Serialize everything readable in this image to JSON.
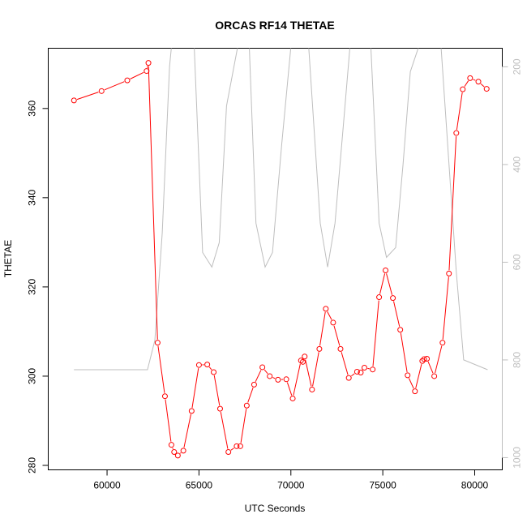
{
  "chart_data": {
    "type": "line",
    "title": "ORCAS RF14 THETAE",
    "xlabel": "UTC Seconds",
    "ylabel": "THETAE",
    "xlim": [
      56800,
      81500
    ],
    "ylim": [
      279,
      373.5
    ],
    "x_ticks": [
      60000,
      65000,
      70000,
      75000,
      80000
    ],
    "x_tick_labels": [
      "60000",
      "65000",
      "70000",
      "75000",
      "80000"
    ],
    "y_ticks": [
      280,
      300,
      320,
      340,
      360
    ],
    "y_tick_labels": [
      "280",
      "300",
      "320",
      "340",
      "360"
    ],
    "y2_axis": {
      "reversed": true,
      "lim": [
        162,
        1025
      ],
      "ticks": [
        200,
        400,
        600,
        800,
        1000
      ],
      "tick_labels": [
        "200",
        "400",
        "600",
        "800",
        "1000"
      ],
      "color": "#bebebe"
    },
    "series": [
      {
        "axis": "left",
        "color": "#ff0000",
        "marker": "open-circle",
        "x": [
          58200,
          59700,
          61100,
          62150,
          62250,
          62750,
          63150,
          63500,
          63650,
          63850,
          64150,
          64600,
          65000,
          65450,
          65800,
          66150,
          66600,
          67050,
          67250,
          67600,
          68000,
          68450,
          68850,
          69300,
          69750,
          70100,
          70550,
          70650,
          70750,
          71150,
          71550,
          71900,
          72300,
          72700,
          73150,
          73600,
          73800,
          74000,
          74450,
          74800,
          75150,
          75550,
          75950,
          76350,
          76750,
          77150,
          77250,
          77400,
          77800,
          78250,
          78600,
          79000,
          79350,
          79750,
          80200,
          80650
        ],
        "values": [
          361.8,
          363.9,
          366.3,
          368.4,
          370.2,
          307.5,
          295.5,
          284.6,
          283.0,
          282.2,
          283.3,
          292.2,
          302.5,
          302.6,
          300.9,
          292.7,
          283.0,
          284.3,
          284.3,
          293.4,
          298.1,
          302.0,
          300.0,
          299.2,
          299.3,
          295.0,
          303.5,
          303.2,
          304.4,
          297.0,
          306.1,
          315.1,
          312.0,
          306.1,
          299.6,
          301.0,
          300.8,
          301.9,
          301.5,
          317.7,
          323.7,
          317.5,
          310.4,
          300.2,
          296.6,
          303.4,
          303.8,
          303.9,
          300.0,
          307.5,
          323.0,
          354.5,
          364.3,
          366.8,
          366.0,
          364.4
        ]
      },
      {
        "axis": "right",
        "color": "#bebebe",
        "marker": "none",
        "x": [
          58200,
          62200,
          62600,
          63000,
          63400,
          63600,
          64200,
          64700,
          65200,
          65700,
          66100,
          66500,
          67300,
          67700,
          68100,
          68600,
          69000,
          69500,
          70100,
          70600,
          70900,
          71600,
          72000,
          72400,
          72900,
          73300,
          73600,
          74300,
          74800,
          75200,
          75700,
          76100,
          76500,
          77300,
          77600,
          78100,
          78600,
          79000,
          79400,
          80700
        ],
        "values": [
          820,
          820,
          760,
          540,
          200,
          120,
          120,
          120,
          580,
          610,
          560,
          280,
          120,
          120,
          520,
          610,
          580,
          360,
          120,
          120,
          120,
          520,
          610,
          520,
          300,
          120,
          120,
          120,
          520,
          590,
          570,
          400,
          210,
          120,
          120,
          120,
          400,
          620,
          800,
          820
        ]
      }
    ]
  }
}
